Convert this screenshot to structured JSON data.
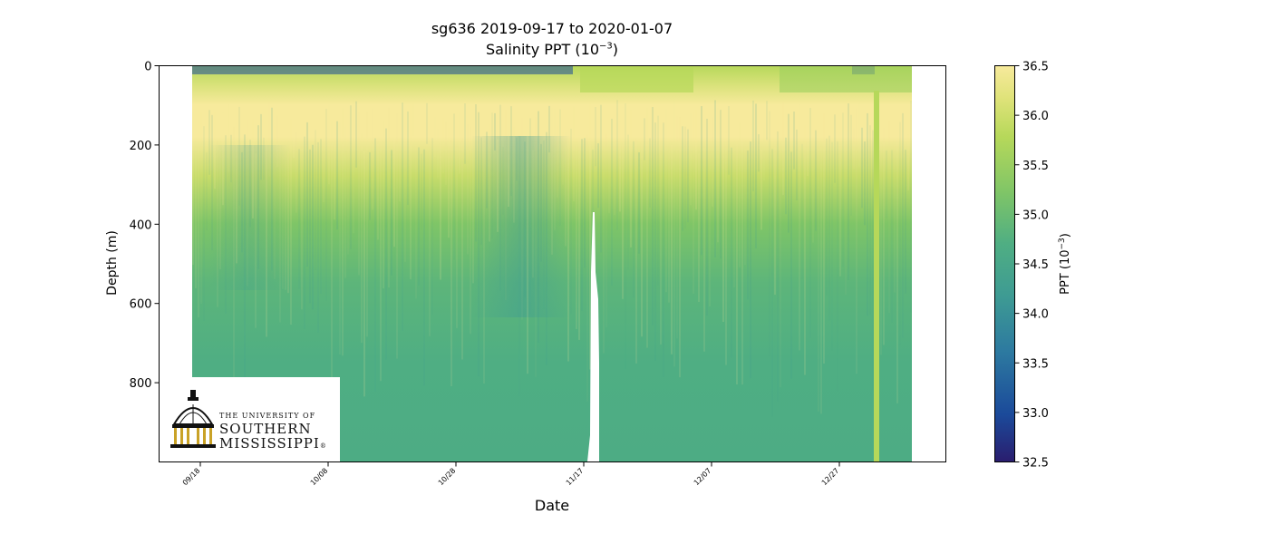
{
  "chart_data": {
    "type": "heatmap",
    "title": "sg636 2019-09-17 to 2020-01-07",
    "subtitle": "Salinity PPT (10",
    "subtitle_sup": "−3",
    "subtitle_end": ")",
    "xlabel": "Date",
    "ylabel": "Depth (m)",
    "colorbar_label": "PPT (10",
    "colorbar_label_sup": "−3",
    "colorbar_label_end": ")",
    "x_ticks": [
      "09/18",
      "10/08",
      "10/28",
      "11/17",
      "12/07",
      "12/27"
    ],
    "y_ticks": [
      0,
      200,
      400,
      600,
      800
    ],
    "ylim": [
      1000,
      0
    ],
    "colorbar_range": [
      32.5,
      36.5
    ],
    "colorbar_ticks": [
      36.5,
      36.0,
      35.5,
      35.0,
      34.5,
      34.0,
      33.5,
      33.0,
      32.5
    ],
    "colormap": [
      "#2a1d6e",
      "#1b4a9a",
      "#2d7aa0",
      "#3e9b93",
      "#4fae83",
      "#7fc567",
      "#b6d85a",
      "#e0e37a",
      "#f7ea9c"
    ],
    "data_gap_date": "11/17",
    "depth_profile": [
      {
        "depth": 0,
        "salinity": 35.6
      },
      {
        "depth": 40,
        "salinity": 36.3
      },
      {
        "depth": 100,
        "salinity": 36.5
      },
      {
        "depth": 180,
        "salinity": 36.1
      },
      {
        "depth": 250,
        "salinity": 35.6
      },
      {
        "depth": 350,
        "salinity": 35.2
      },
      {
        "depth": 500,
        "salinity": 35.0
      },
      {
        "depth": 800,
        "salinity": 34.95
      },
      {
        "depth": 1000,
        "salinity": 34.95
      }
    ]
  },
  "logo": {
    "line1": "THE UNIVERSITY OF",
    "line2": "SOUTHERN",
    "line3": "MISSISSIPPI",
    "mark": "®"
  }
}
